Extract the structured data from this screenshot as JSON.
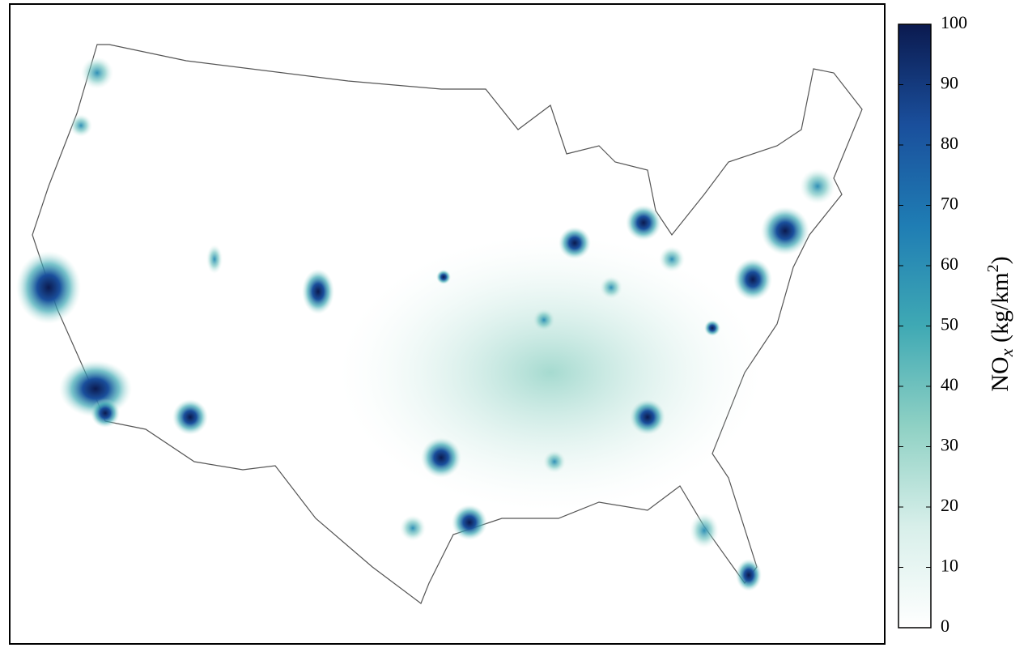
{
  "colorbar": {
    "range": [
      0,
      100
    ],
    "ticks": [
      0,
      10,
      20,
      30,
      40,
      50,
      60,
      70,
      80,
      90,
      100
    ],
    "colors": [
      "#ffffff",
      "#d8efea",
      "#8fd1c4",
      "#3fa9b4",
      "#1f7db4",
      "#1a4f9c",
      "#0b1a4f"
    ],
    "label": {
      "base": "NO",
      "sub": "x",
      "middle": " (kg/km",
      "sup": "2",
      "end": ")"
    }
  }
}
